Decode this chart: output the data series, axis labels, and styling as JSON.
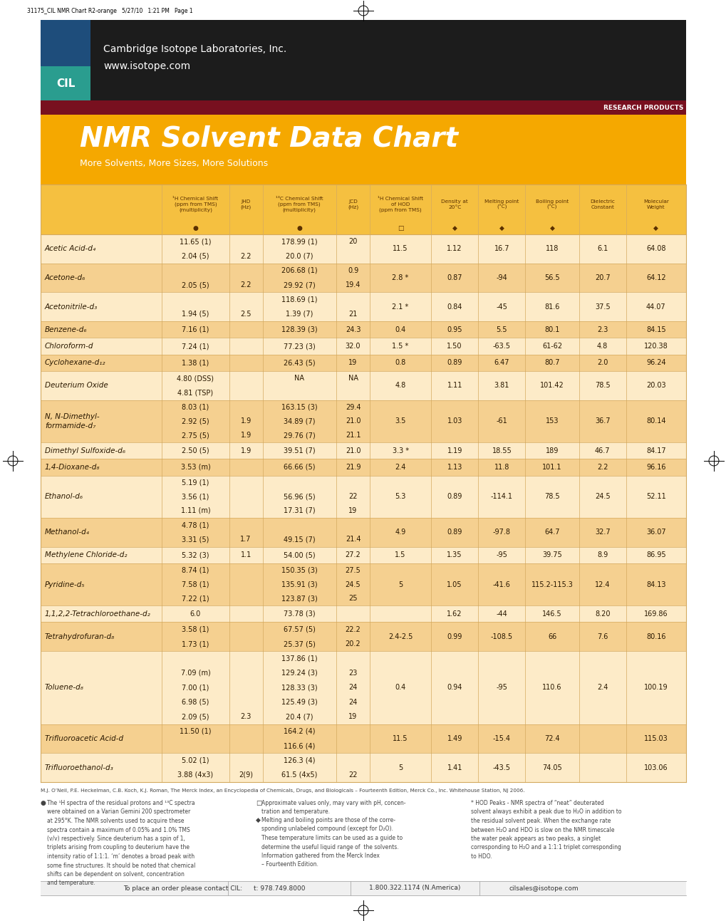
{
  "title": "NMR Solvent Data Chart",
  "subtitle": "More Solvents, More Sizes, More Solutions",
  "company": "Cambridge Isotope Laboratories, Inc.",
  "website": "www.isotope.com",
  "col_props": [
    0.188,
    0.104,
    0.052,
    0.114,
    0.052,
    0.095,
    0.073,
    0.073,
    0.083,
    0.073,
    0.093
  ],
  "header_texts": [
    "",
    "¹H Chemical Shift\n(ppm from TMS)\n(multiplicity)",
    "JHD\n(Hz)",
    "¹³C Chemical Shift\n(ppm from TMS)\n(multiplicity)",
    "JCD\n(Hz)",
    "¹H Chemical Shift\nof HOD\n(ppm from TMS)",
    "Density at\n20°C",
    "Melting point\n(°C)",
    "Boiling point\n(°C)",
    "Dielectric\nConstant",
    "Molecular\nWeight"
  ],
  "icons": [
    "",
    "●",
    "",
    "●",
    "",
    "□",
    "◆",
    "◆",
    "◆",
    "",
    "◆"
  ],
  "rows": [
    {
      "name": "Acetic Acid-d₄",
      "h_shift": [
        "11.65 (1)",
        "2.04 (5)"
      ],
      "jhd": [
        "",
        "2.2"
      ],
      "c_shift": [
        "178.99 (1)",
        "20.0 (7)"
      ],
      "jcd": [
        "20",
        ""
      ],
      "hod": "11.5",
      "density": "1.12",
      "melt": "16.7",
      "boil": "118",
      "dielec": "6.1",
      "mol_wt": "64.08"
    },
    {
      "name": "Acetone-d₆",
      "h_shift": [
        "",
        "2.05 (5)"
      ],
      "jhd": [
        "",
        "2.2"
      ],
      "c_shift": [
        "206.68 (1)",
        "29.92 (7)"
      ],
      "jcd": [
        "0.9",
        "19.4"
      ],
      "hod": "2.8 *",
      "density": "0.87",
      "melt": "-94",
      "boil": "56.5",
      "dielec": "20.7",
      "mol_wt": "64.12"
    },
    {
      "name": "Acetonitrile-d₃",
      "h_shift": [
        "",
        "1.94 (5)"
      ],
      "jhd": [
        "",
        "2.5"
      ],
      "c_shift": [
        "118.69 (1)",
        "1.39 (7)"
      ],
      "jcd": [
        "",
        "21"
      ],
      "hod": "2.1 *",
      "density": "0.84",
      "melt": "-45",
      "boil": "81.6",
      "dielec": "37.5",
      "mol_wt": "44.07"
    },
    {
      "name": "Benzene-d₆",
      "h_shift": [
        "7.16 (1)"
      ],
      "jhd": [
        ""
      ],
      "c_shift": [
        "128.39 (3)"
      ],
      "jcd": [
        "24.3"
      ],
      "hod": "0.4",
      "density": "0.95",
      "melt": "5.5",
      "boil": "80.1",
      "dielec": "2.3",
      "mol_wt": "84.15"
    },
    {
      "name": "Chloroform-d",
      "h_shift": [
        "7.24 (1)"
      ],
      "jhd": [
        ""
      ],
      "c_shift": [
        "77.23 (3)"
      ],
      "jcd": [
        "32.0"
      ],
      "hod": "1.5 *",
      "density": "1.50",
      "melt": "-63.5",
      "boil": "61-62",
      "dielec": "4.8",
      "mol_wt": "120.38"
    },
    {
      "name": "Cyclohexane-d₁₂",
      "h_shift": [
        "1.38 (1)"
      ],
      "jhd": [
        ""
      ],
      "c_shift": [
        "26.43 (5)"
      ],
      "jcd": [
        "19"
      ],
      "hod": "0.8",
      "density": "0.89",
      "melt": "6.47",
      "boil": "80.7",
      "dielec": "2.0",
      "mol_wt": "96.24"
    },
    {
      "name": "Deuterium Oxide",
      "h_shift": [
        "4.80 (DSS)",
        "4.81 (TSP)"
      ],
      "jhd": [
        "",
        ""
      ],
      "c_shift": [
        "NA",
        ""
      ],
      "jcd": [
        "NA",
        ""
      ],
      "hod": "4.8",
      "density": "1.11",
      "melt": "3.81",
      "boil": "101.42",
      "dielec": "78.5",
      "mol_wt": "20.03"
    },
    {
      "name": "N, N-Dimethyl-\nformamide-d₇",
      "h_shift": [
        "8.03 (1)",
        "2.92 (5)",
        "2.75 (5)"
      ],
      "jhd": [
        "",
        "1.9",
        "1.9"
      ],
      "c_shift": [
        "163.15 (3)",
        "34.89 (7)",
        "29.76 (7)"
      ],
      "jcd": [
        "29.4",
        "21.0",
        "21.1"
      ],
      "hod": "3.5",
      "density": "1.03",
      "melt": "-61",
      "boil": "153",
      "dielec": "36.7",
      "mol_wt": "80.14"
    },
    {
      "name": "Dimethyl Sulfoxide-d₆",
      "h_shift": [
        "2.50 (5)"
      ],
      "jhd": [
        "1.9"
      ],
      "c_shift": [
        "39.51 (7)"
      ],
      "jcd": [
        "21.0"
      ],
      "hod": "3.3 *",
      "density": "1.19",
      "melt": "18.55",
      "boil": "189",
      "dielec": "46.7",
      "mol_wt": "84.17"
    },
    {
      "name": "1,4-Dioxane-d₈",
      "h_shift": [
        "3.53 (m)"
      ],
      "jhd": [
        ""
      ],
      "c_shift": [
        "66.66 (5)"
      ],
      "jcd": [
        "21.9"
      ],
      "hod": "2.4",
      "density": "1.13",
      "melt": "11.8",
      "boil": "101.1",
      "dielec": "2.2",
      "mol_wt": "96.16"
    },
    {
      "name": "Ethanol-d₆",
      "h_shift": [
        "5.19 (1)",
        "3.56 (1)",
        "1.11 (m)"
      ],
      "jhd": [
        "",
        "",
        ""
      ],
      "c_shift": [
        "",
        "56.96 (5)",
        "17.31 (7)"
      ],
      "jcd": [
        "",
        "22",
        "19"
      ],
      "hod": "5.3",
      "density": "0.89",
      "melt": "-114.1",
      "boil": "78.5",
      "dielec": "24.5",
      "mol_wt": "52.11"
    },
    {
      "name": "Methanol-d₄",
      "h_shift": [
        "4.78 (1)",
        "3.31 (5)"
      ],
      "jhd": [
        "",
        "1.7"
      ],
      "c_shift": [
        "",
        "49.15 (7)"
      ],
      "jcd": [
        "",
        "21.4"
      ],
      "hod": "4.9",
      "density": "0.89",
      "melt": "-97.8",
      "boil": "64.7",
      "dielec": "32.7",
      "mol_wt": "36.07"
    },
    {
      "name": "Methylene Chloride-d₂",
      "h_shift": [
        "5.32 (3)"
      ],
      "jhd": [
        "1.1"
      ],
      "c_shift": [
        "54.00 (5)"
      ],
      "jcd": [
        "27.2"
      ],
      "hod": "1.5",
      "density": "1.35",
      "melt": "-95",
      "boil": "39.75",
      "dielec": "8.9",
      "mol_wt": "86.95"
    },
    {
      "name": "Pyridine-d₅",
      "h_shift": [
        "8.74 (1)",
        "7.58 (1)",
        "7.22 (1)"
      ],
      "jhd": [
        "",
        "",
        ""
      ],
      "c_shift": [
        "150.35 (3)",
        "135.91 (3)",
        "123.87 (3)"
      ],
      "jcd": [
        "27.5",
        "24.5",
        "25"
      ],
      "hod": "5",
      "density": "1.05",
      "melt": "-41.6",
      "boil": "115.2-115.3",
      "dielec": "12.4",
      "mol_wt": "84.13"
    },
    {
      "name": "1,1,2,2-Tetrachloroethane-d₂",
      "h_shift": [
        "6.0"
      ],
      "jhd": [
        ""
      ],
      "c_shift": [
        "73.78 (3)"
      ],
      "jcd": [
        ""
      ],
      "hod": "",
      "density": "1.62",
      "melt": "-44",
      "boil": "146.5",
      "dielec": "8.20",
      "mol_wt": "169.86"
    },
    {
      "name": "Tetrahydrofuran-d₈",
      "h_shift": [
        "3.58 (1)",
        "1.73 (1)"
      ],
      "jhd": [
        "",
        ""
      ],
      "c_shift": [
        "67.57 (5)",
        "25.37 (5)"
      ],
      "jcd": [
        "22.2",
        "20.2"
      ],
      "hod": "2.4-2.5",
      "density": "0.99",
      "melt": "-108.5",
      "boil": "66",
      "dielec": "7.6",
      "mol_wt": "80.16"
    },
    {
      "name": "Toluene-d₈",
      "h_shift": [
        "",
        "7.09 (m)",
        "7.00 (1)",
        "6.98 (5)",
        "2.09 (5)"
      ],
      "jhd": [
        "",
        "",
        "",
        "",
        "2.3"
      ],
      "c_shift": [
        "137.86 (1)",
        "129.24 (3)",
        "128.33 (3)",
        "125.49 (3)",
        "20.4 (7)"
      ],
      "jcd": [
        "",
        "23",
        "24",
        "24",
        "19"
      ],
      "hod": "0.4",
      "density": "0.94",
      "melt": "-95",
      "boil": "110.6",
      "dielec": "2.4",
      "mol_wt": "100.19"
    },
    {
      "name": "Trifluoroacetic Acid-d",
      "h_shift": [
        "11.50 (1)",
        ""
      ],
      "jhd": [
        "",
        ""
      ],
      "c_shift": [
        "164.2 (4)",
        "116.6 (4)"
      ],
      "jcd": [
        "",
        ""
      ],
      "hod": "11.5",
      "density": "1.49",
      "melt": "-15.4",
      "boil": "72.4",
      "dielec": "",
      "mol_wt": "115.03"
    },
    {
      "name": "Trifluoroethanol-d₃",
      "h_shift": [
        "5.02 (1)",
        "3.88 (4x3)"
      ],
      "jhd": [
        "",
        "2(9)"
      ],
      "c_shift": [
        "126.3 (4)",
        "61.5 (4x5)"
      ],
      "jcd": [
        "",
        "22"
      ],
      "hod": "5",
      "density": "1.41",
      "melt": "-43.5",
      "boil": "74.05",
      "dielec": "",
      "mol_wt": "103.06"
    }
  ],
  "footnote_ref": "M.J. O’Neil, P.E. Heckelman, C.B. Koch, K.J. Roman, The Merck Index, an Encyclopedia of Chemicals, Drugs, and Biologicals – Fourteenth Edition, Merck Co., Inc. Whitehouse Station, NJ 2006.",
  "fn1_bullet": "●",
  "fn1_text": "The ¹H spectra of the residual protons and ¹³C spectra\nwere obtained on a Varian Gemini 200 spectrometer\nat 295°K. The NMR solvents used to acquire these\nspectra contain a maximum of 0.05% and 1.0% TMS\n(v/v) respectively. Since deuterium has a spin of 1,\ntriplets arising from coupling to deuterium have the\nintensity ratio of 1:1:1. ‘m’ denotes a broad peak with\nsome fine structures. It should be noted that chemical\nshifts can be dependent on solvent, concentration\nand temperature.",
  "fn2_bullet": "□",
  "fn2_text": "Approximate values only, may vary with pH, concen-\ntration and temperature.",
  "fn2b_bullet": "◆",
  "fn2b_text": "Melting and boiling points are those of the corre-\nsponding unlabeled compound (except for D₂O).\nThese temperature limits can be used as a guide to\ndetermine the useful liquid range of  the solvents.\nInformation gathered from the Merck Index\n– Fourteenth Edition.",
  "fn3_text": "* HOD Peaks - NMR spectra of “neat” deuterated\nsolvent always exhibit a peak due to H₂O in addition to\nthe residual solvent peak. When the exchange rate\nbetween H₂O and HDO is slow on the NMR timescale\nthe water peak appears as two peaks, a singlet\ncorresponding to H₂O and a 1:1:1 triplet corresponding\nto HDO.",
  "footer_left": "To place an order please contact CIL:",
  "footer_t": "t: 978.749.8000",
  "footer_na": "1.800.322.1174 (N.America)",
  "footer_email": "cilsales@isotope.com",
  "color_dark_banner": "#1c1c1c",
  "color_blue_logo": "#1e4d7b",
  "color_teal_logo": "#2a9d8f",
  "color_dark_red": "#78101f",
  "color_gold": "#F5A800",
  "color_header_row": "#F5C040",
  "color_row_light": "#FDEBC8",
  "color_row_dark": "#F5D090",
  "color_line": "#D4AA60",
  "color_text_dark": "#2a1800",
  "color_footnote": "#444444"
}
